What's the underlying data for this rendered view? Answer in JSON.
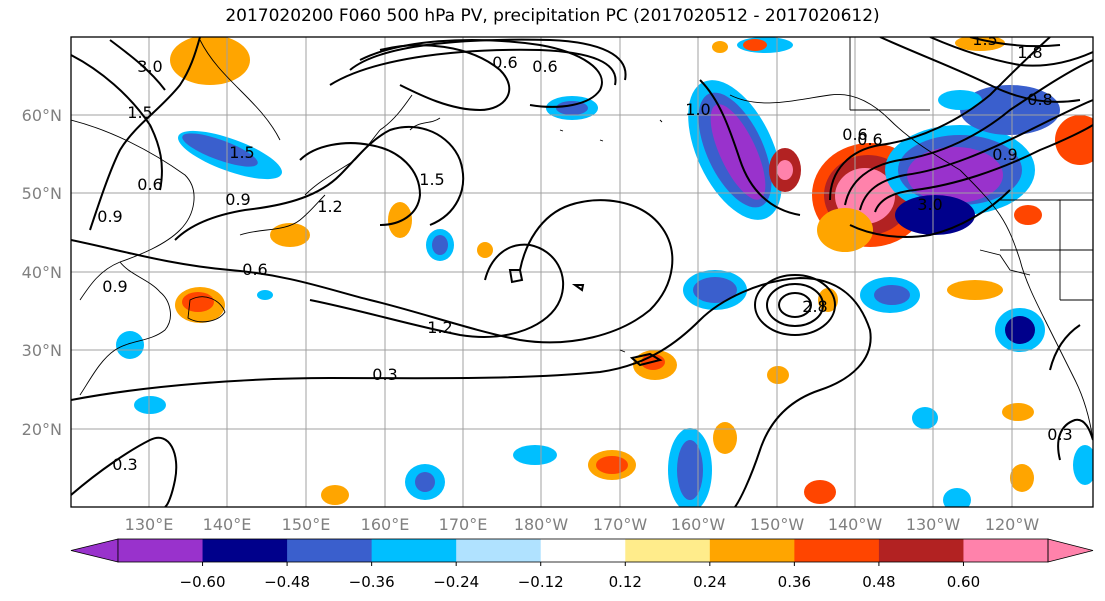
{
  "title": "2017020200 F060 500 hPa PV, precipitation PC (2017020512 - 2017020612)",
  "axes": {
    "lat_labels": [
      "60°N",
      "50°N",
      "40°N",
      "30°N",
      "20°N"
    ],
    "lon_labels": [
      "130°E",
      "140°E",
      "150°E",
      "160°E",
      "170°E",
      "180°W",
      "170°W",
      "160°W",
      "150°W",
      "140°W",
      "130°W",
      "120°W"
    ]
  },
  "contour_labels": [
    "3.0",
    "1.5",
    "0.6",
    "0.9",
    "1.5",
    "0.6",
    "0.9",
    "0.9",
    "1.2",
    "1.5",
    "0.6",
    "0.6",
    "1.2",
    "0.3",
    "0.3",
    "1.0",
    "0.6",
    "1.5",
    "1.8",
    "0.9",
    "0.8",
    "0.6",
    "0.3",
    "2.8",
    "3.0"
  ],
  "colorbar": {
    "colors": [
      "#9932cc",
      "#00008b",
      "#3a5fcd",
      "#00bfff",
      "#b0e2ff",
      "#ffffff",
      "#ffec8b",
      "#ffa500",
      "#ff4500",
      "#b22222",
      "#ff82ab"
    ],
    "tick_labels": [
      "−0.60",
      "−0.48",
      "−0.36",
      "−0.24",
      "−0.12",
      "0.12",
      "0.24",
      "0.36",
      "0.48",
      "0.60"
    ]
  },
  "palette": {
    "purple": "#9932cc",
    "navy": "#00008b",
    "blue": "#3a5fcd",
    "cyan": "#00bfff",
    "yellow": "#ffec8b",
    "orange": "#ffa500",
    "red": "#ff4500",
    "darkred": "#b22222",
    "pink": "#ff82ab"
  }
}
